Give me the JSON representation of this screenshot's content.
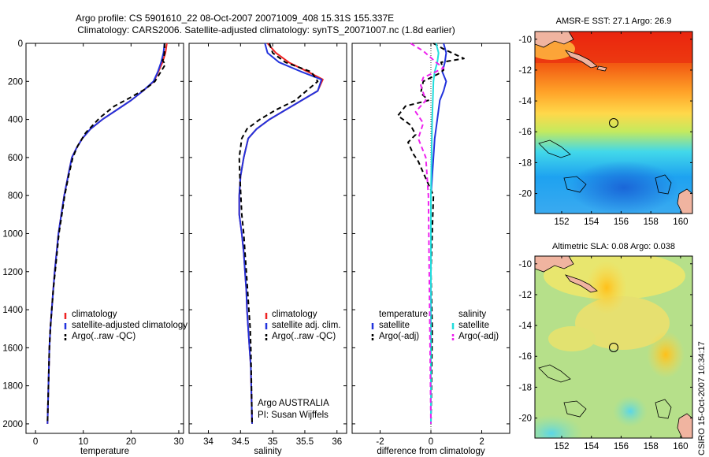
{
  "figure": {
    "title_line1": "Argo profile: CS 5901610_22 08-Oct-2007 20071009_408 15.31S 155.337E",
    "title_line2": "Climatology: CARS2006. Satellite-adjusted climatology: synTS_20071007.nc (1.8d earlier)",
    "credit_line1": "Argo AUSTRALIA",
    "credit_line2": "PI: Susan Wijffels",
    "stamp": "CSIRO 15-Oct-2007 10:34:17",
    "colors": {
      "red": "#ee2222",
      "blue": "#2233dd",
      "black": "#000000",
      "cyan": "#22dddd",
      "magenta": "#ee22ee"
    }
  },
  "chart_data": [
    {
      "type": "line",
      "xlabel": "temperature",
      "ylabel": "",
      "xlim": [
        -2,
        31
      ],
      "ylim": [
        2050,
        0
      ],
      "xticks": [
        0,
        10,
        20,
        30
      ],
      "yticks": [
        0,
        200,
        400,
        600,
        800,
        1000,
        1200,
        1400,
        1600,
        1800,
        2000
      ],
      "legend": {
        "placement": "bottom-center",
        "entries": [
          "climatology",
          "satellite-adjusted climatology",
          "Argo(..raw -QC)"
        ]
      },
      "series": [
        {
          "name": "climatology",
          "color": "red",
          "style": "solid",
          "x": [
            27.5,
            27.2,
            26.6,
            25.7,
            24.8,
            22.5,
            20.0,
            17.0,
            14.0,
            11.5,
            9.8,
            8.6,
            7.6,
            6.8,
            6.0,
            5.4,
            4.8,
            4.4,
            4.0,
            3.7,
            3.4,
            3.1,
            2.9,
            2.7,
            2.5
          ],
          "y": [
            0,
            50,
            100,
            150,
            200,
            250,
            300,
            350,
            400,
            450,
            500,
            550,
            600,
            700,
            800,
            900,
            1000,
            1100,
            1200,
            1300,
            1400,
            1500,
            1600,
            1800,
            2000
          ]
        },
        {
          "name": "satellite-adjusted climatology",
          "color": "blue",
          "style": "solid",
          "x": [
            27.0,
            26.8,
            26.3,
            25.6,
            24.7,
            22.5,
            20.0,
            17.0,
            14.0,
            11.5,
            9.8,
            8.6,
            7.6,
            6.8,
            6.0,
            5.4,
            4.8,
            4.4,
            4.0,
            3.7,
            3.4,
            3.1,
            2.9,
            2.7,
            2.5
          ],
          "y": [
            0,
            50,
            100,
            150,
            200,
            250,
            300,
            350,
            400,
            450,
            500,
            550,
            600,
            700,
            800,
            900,
            1000,
            1100,
            1200,
            1300,
            1400,
            1500,
            1600,
            1800,
            2000
          ]
        },
        {
          "name": "Argo(..raw -QC)",
          "color": "black",
          "style": "dashed",
          "x": [
            27.0,
            27.0,
            26.9,
            26.6,
            27.2,
            25.0,
            23.0,
            19.5,
            16.5,
            13.5,
            10.5,
            8.8,
            7.8,
            6.9,
            6.1,
            5.5,
            4.9,
            4.5,
            4.1,
            3.7,
            3.4,
            3.1,
            2.9,
            2.7,
            2.5
          ],
          "y": [
            0,
            40,
            70,
            90,
            110,
            200,
            240,
            290,
            330,
            390,
            470,
            540,
            600,
            700,
            800,
            900,
            1000,
            1100,
            1200,
            1300,
            1400,
            1500,
            1600,
            1800,
            2000
          ]
        }
      ]
    },
    {
      "type": "line",
      "xlabel": "salinity",
      "xlim": [
        33.7,
        36.15
      ],
      "ylim": [
        2050,
        0
      ],
      "xticks": [
        34,
        34.5,
        35,
        35.5,
        36
      ],
      "legend": {
        "placement": "bottom-center",
        "entries": [
          "climatology",
          "satellite adj. clim.",
          "Argo(..raw -QC)"
        ]
      },
      "series": [
        {
          "name": "climatology",
          "color": "red",
          "style": "solid",
          "x": [
            34.92,
            35.05,
            35.25,
            35.55,
            35.78,
            35.7,
            35.45,
            35.2,
            34.95,
            34.75,
            34.62,
            34.55,
            34.5,
            34.48,
            34.48,
            34.52,
            34.55,
            34.57,
            34.59,
            34.6,
            34.62,
            34.64,
            34.66,
            34.67,
            34.68
          ],
          "y": [
            0,
            50,
            100,
            150,
            190,
            250,
            300,
            350,
            400,
            450,
            500,
            600,
            700,
            800,
            900,
            1000,
            1100,
            1200,
            1300,
            1400,
            1500,
            1600,
            1700,
            1850,
            2000
          ]
        },
        {
          "name": "satellite adj. clim.",
          "color": "blue",
          "style": "solid",
          "x": [
            34.88,
            34.92,
            35.1,
            35.45,
            35.76,
            35.7,
            35.45,
            35.2,
            34.95,
            34.75,
            34.62,
            34.55,
            34.5,
            34.48,
            34.48,
            34.52,
            34.55,
            34.57,
            34.59,
            34.6,
            34.62,
            34.64,
            34.66,
            34.67,
            34.68
          ],
          "y": [
            0,
            50,
            100,
            150,
            190,
            250,
            300,
            350,
            400,
            450,
            500,
            600,
            700,
            800,
            900,
            1000,
            1100,
            1200,
            1300,
            1400,
            1500,
            1600,
            1700,
            1850,
            2000
          ]
        },
        {
          "name": "Argo(..raw -QC)",
          "color": "black",
          "style": "dashed",
          "x": [
            34.95,
            35.0,
            35.2,
            35.6,
            35.7,
            35.35,
            35.05,
            34.8,
            34.6,
            34.52,
            34.5,
            34.48,
            34.49,
            34.52,
            34.55,
            34.57,
            34.59,
            34.61,
            34.63,
            34.65,
            34.66,
            34.67,
            34.68
          ],
          "y": [
            0,
            50,
            100,
            150,
            200,
            300,
            350,
            400,
            450,
            500,
            550,
            600,
            700,
            900,
            1000,
            1100,
            1200,
            1300,
            1400,
            1500,
            1600,
            1800,
            2000
          ]
        }
      ]
    },
    {
      "type": "line",
      "xlabel": "difference from climatology",
      "xlim": [
        -3.1,
        3.1
      ],
      "ylim": [
        2050,
        0
      ],
      "xticks": [
        -2,
        0,
        2
      ],
      "legend": {
        "placement": "bottom-center",
        "headers": [
          "temperature",
          "salinity"
        ],
        "entries": [
          "satellite",
          "Argo(-adj)",
          "satellite",
          "Argo(-adj)"
        ]
      },
      "series": [
        {
          "name": "temperature satellite",
          "color": "blue",
          "style": "solid",
          "x": [
            0.5,
            0.6,
            0.55,
            0.45,
            0.6,
            0.5,
            0.35,
            0.25,
            0.15,
            0.1,
            0.05,
            0.0,
            0.0,
            0.0
          ],
          "y": [
            0,
            50,
            100,
            150,
            200,
            250,
            300,
            400,
            500,
            600,
            700,
            800,
            1200,
            2000
          ]
        },
        {
          "name": "temperature Argo(-adj)",
          "color": "black",
          "style": "dashed",
          "x": [
            0.1,
            0.5,
            1.3,
            0.4,
            0.5,
            0.3,
            -0.3,
            -0.4,
            -0.1,
            -1.0,
            -1.3,
            -0.8,
            -0.6,
            -0.9,
            -0.7,
            -0.5,
            -0.3,
            0.1,
            0.0,
            0.05,
            0.0
          ],
          "y": [
            0,
            30,
            80,
            100,
            140,
            160,
            200,
            260,
            300,
            330,
            380,
            430,
            480,
            520,
            580,
            620,
            680,
            800,
            1200,
            1500,
            2000
          ]
        },
        {
          "name": "salinity satellite",
          "color": "cyan",
          "style": "solid",
          "x": [
            0.2,
            0.3,
            0.25,
            0.15,
            0.1,
            0.05,
            0.0,
            0.0
          ],
          "y": [
            0,
            50,
            100,
            150,
            200,
            400,
            800,
            2000
          ]
        },
        {
          "name": "salinity Argo(-adj)",
          "color": "magenta",
          "style": "dashed",
          "x": [
            -0.8,
            -0.3,
            0.2,
            0.5,
            -0.3,
            -0.4,
            -0.2,
            -0.6,
            -0.3,
            -0.5,
            -0.2,
            -0.1,
            0.0
          ],
          "y": [
            0,
            40,
            100,
            130,
            180,
            220,
            300,
            360,
            420,
            500,
            600,
            800,
            2000
          ]
        }
      ]
    },
    {
      "type": "heatmap",
      "title": "AMSR-E SST: 27.1 Argo: 26.9",
      "xlim": [
        150.2,
        160.8
      ],
      "ylim": [
        -21.3,
        -9.5
      ],
      "xticks": [
        152,
        154,
        156,
        158,
        160
      ],
      "yticks": [
        -10,
        -12,
        -14,
        -16,
        -18,
        -20
      ],
      "profile_marker": {
        "lon": 155.337,
        "lat": -15.31
      }
    },
    {
      "type": "heatmap",
      "title": "Altimetric SLA: 0.08 Argo: 0.038",
      "xlim": [
        150.2,
        160.8
      ],
      "ylim": [
        -21.3,
        -9.5
      ],
      "xticks": [
        152,
        154,
        156,
        158,
        160
      ],
      "yticks": [
        -10,
        -12,
        -14,
        -16,
        -18,
        -20
      ],
      "profile_marker": {
        "lon": 155.337,
        "lat": -15.31
      }
    }
  ]
}
